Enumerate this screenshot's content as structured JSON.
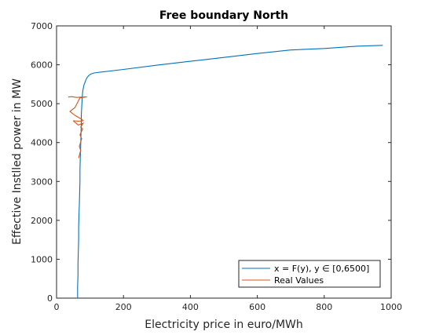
{
  "chart_data": {
    "type": "line",
    "title": "Free boundary North",
    "xlabel": "Electricity price in euro/MWh",
    "ylabel": "Effective Instlled power in MW",
    "xlim": [
      0,
      1000
    ],
    "ylim": [
      0,
      7000
    ],
    "xticks": [
      0,
      200,
      400,
      600,
      800,
      1000
    ],
    "yticks": [
      0,
      1000,
      2000,
      3000,
      4000,
      5000,
      6000,
      7000
    ],
    "legend_position": "bottom-right",
    "grid": false,
    "series": [
      {
        "name": "x = F(y), y ∈ [0,6500]",
        "color": "#0072BD",
        "x": [
          63,
          63,
          64,
          64,
          65,
          66,
          66,
          67,
          68,
          69,
          70,
          70,
          71,
          72,
          73,
          74,
          74,
          75,
          76,
          77,
          78,
          80,
          82,
          85,
          88,
          92,
          96,
          100,
          105,
          112,
          120,
          200,
          300,
          400,
          500,
          600,
          700,
          800,
          900,
          975
        ],
        "y": [
          0,
          300,
          600,
          900,
          1200,
          1500,
          1800,
          2100,
          2400,
          2700,
          3000,
          3300,
          3600,
          3900,
          4200,
          4500,
          4700,
          4900,
          5050,
          5200,
          5300,
          5400,
          5480,
          5550,
          5620,
          5680,
          5720,
          5750,
          5770,
          5790,
          5800,
          5880,
          5990,
          6090,
          6190,
          6290,
          6380,
          6420,
          6480,
          6500
        ]
      },
      {
        "name": "Real Values",
        "color": "#D95319",
        "x": [
          35,
          45,
          60,
          75,
          90,
          70,
          55,
          40,
          55,
          75,
          80,
          65,
          50,
          65,
          80,
          72,
          78,
          70,
          75,
          68,
          72,
          66
        ],
        "y": [
          5170,
          5180,
          5160,
          5170,
          5175,
          5150,
          4900,
          4800,
          4700,
          4600,
          4560,
          4550,
          4560,
          4450,
          4500,
          4400,
          4350,
          4200,
          4100,
          3900,
          3800,
          3600
        ]
      }
    ]
  }
}
